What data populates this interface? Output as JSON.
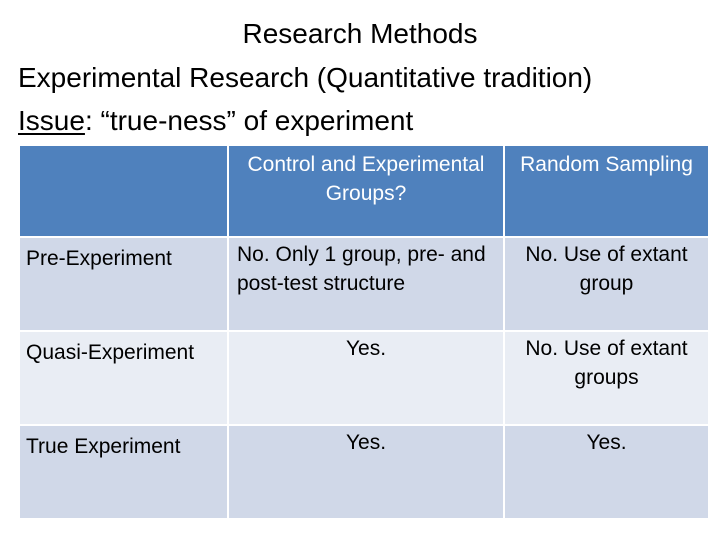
{
  "slide": {
    "title": "Research Methods",
    "subtitle": "Experimental Research (Quantitative tradition)",
    "issue_label": "Issue",
    "issue_text": ":  “true-ness” of experiment"
  },
  "table": {
    "headers": [
      "",
      "Control and Experimental Groups?",
      "Random Sampling"
    ],
    "rows": [
      {
        "label": "Pre-Experiment",
        "control": "No.  Only 1 group, pre- and post-test structure",
        "random": "No.  Use of extant group"
      },
      {
        "label": "Quasi-Experiment",
        "control": "Yes.",
        "random": "No.  Use of extant groups"
      },
      {
        "label": "True Experiment",
        "control": "Yes.",
        "random": "Yes."
      }
    ]
  },
  "colors": {
    "header_bg": "#4f81bd",
    "row_odd_bg": "#d0d8e8",
    "row_even_bg": "#e9edf4"
  }
}
